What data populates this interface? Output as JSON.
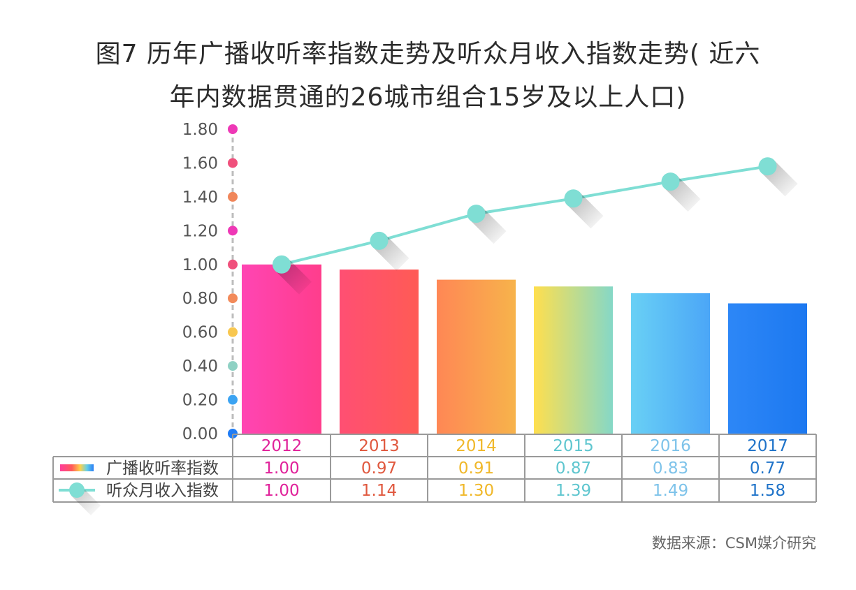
{
  "title_line1": "图7 历年广播收听率指数走势及听众月收入指数走势( 近六",
  "title_line2": "年内数据贯通的26城市组合15岁及以上人口)",
  "source": "数据来源：CSM媒介研究",
  "chart_data": {
    "type": "bar",
    "categories": [
      "2012",
      "2013",
      "2014",
      "2015",
      "2016",
      "2017"
    ],
    "series": [
      {
        "name": "广播收听率指数",
        "type": "bar",
        "values": [
          1.0,
          0.97,
          0.91,
          0.87,
          0.83,
          0.77
        ]
      },
      {
        "name": "听众月收入指数",
        "type": "line",
        "values": [
          1.0,
          1.14,
          1.3,
          1.39,
          1.49,
          1.58
        ]
      }
    ],
    "ylim": [
      0,
      1.8
    ],
    "yticks": [
      "0.00",
      "0.20",
      "0.40",
      "0.60",
      "0.80",
      "1.00",
      "1.20",
      "1.40",
      "1.60",
      "1.80"
    ],
    "value_labels": {
      "bars": [
        "1.00",
        "0.97",
        "0.91",
        "0.87",
        "0.83",
        "0.77"
      ],
      "line": [
        "1.00",
        "1.14",
        "1.30",
        "1.39",
        "1.49",
        "1.58"
      ]
    },
    "legend_placement": "data-table-left",
    "category_colors": [
      "#e0219a",
      "#e0583e",
      "#f0b82a",
      "#5fc6cf",
      "#7ec3ea",
      "#1f73c9"
    ],
    "bar_gradients": [
      [
        "#ff45b3",
        "#ff3d8c"
      ],
      [
        "#ff4f73",
        "#ff5b55"
      ],
      [
        "#ff8755",
        "#f7b34b"
      ],
      [
        "#ffdf4e",
        "#85d8c7"
      ],
      [
        "#69d0f5",
        "#4ba6f7"
      ],
      [
        "#2d87f7",
        "#1c78f0"
      ]
    ],
    "line_color": "#7fded4",
    "axis_dot_colors": [
      "#1f7cf5",
      "#3ba3f2",
      "#8fd1c4",
      "#f8c74f",
      "#f28a5a",
      "#f0507c",
      "#ee38b6",
      "#f0865a",
      "#f0507c",
      "#ee38b6"
    ]
  }
}
